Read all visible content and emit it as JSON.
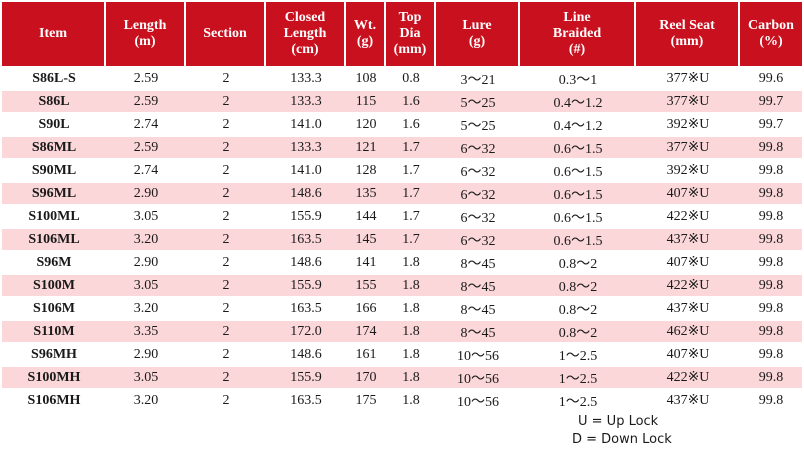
{
  "headers": [
    [
      "Item"
    ],
    [
      "Length",
      "(m)"
    ],
    [
      "Section"
    ],
    [
      "Closed",
      "Length",
      "(cm)"
    ],
    [
      "Wt.",
      "(g)"
    ],
    [
      "Top",
      "Dia",
      "(mm)"
    ],
    [
      "Lure",
      "(g)"
    ],
    [
      "Line",
      "Braided",
      "(#)"
    ],
    [
      "Reel Seat",
      "(mm)"
    ],
    [
      "Carbon",
      "(%)"
    ]
  ],
  "rows": [
    [
      "S86L-S",
      "2.59",
      "2",
      "133.3",
      "108",
      "0.8",
      "3～21",
      "0.3～1",
      "377※U",
      "99.6"
    ],
    [
      "S86L",
      "2.59",
      "2",
      "133.3",
      "115",
      "1.6",
      "5～25",
      "0.4～1.2",
      "377※U",
      "99.7"
    ],
    [
      "S90L",
      "2.74",
      "2",
      "141.0",
      "120",
      "1.6",
      "5～25",
      "0.4～1.2",
      "392※U",
      "99.7"
    ],
    [
      "S86ML",
      "2.59",
      "2",
      "133.3",
      "121",
      "1.7",
      "6～32",
      "0.6～1.5",
      "377※U",
      "99.8"
    ],
    [
      "S90ML",
      "2.74",
      "2",
      "141.0",
      "128",
      "1.7",
      "6～32",
      "0.6～1.5",
      "392※U",
      "99.8"
    ],
    [
      "S96ML",
      "2.90",
      "2",
      "148.6",
      "135",
      "1.7",
      "6～32",
      "0.6～1.5",
      "407※U",
      "99.8"
    ],
    [
      "S100ML",
      "3.05",
      "2",
      "155.9",
      "144",
      "1.7",
      "6～32",
      "0.6～1.5",
      "422※U",
      "99.8"
    ],
    [
      "S106ML",
      "3.20",
      "2",
      "163.5",
      "145",
      "1.7",
      "6～32",
      "0.6～1.5",
      "437※U",
      "99.8"
    ],
    [
      "S96M",
      "2.90",
      "2",
      "148.6",
      "141",
      "1.8",
      "8～45",
      "0.8～2",
      "407※U",
      "99.8"
    ],
    [
      "S100M",
      "3.05",
      "2",
      "155.9",
      "155",
      "1.8",
      "8～45",
      "0.8～2",
      "422※U",
      "99.8"
    ],
    [
      "S106M",
      "3.20",
      "2",
      "163.5",
      "166",
      "1.8",
      "8～45",
      "0.8～2",
      "437※U",
      "99.8"
    ],
    [
      "S110M",
      "3.35",
      "2",
      "172.0",
      "174",
      "1.8",
      "8～45",
      "0.8～2",
      "462※U",
      "99.8"
    ],
    [
      "S96MH",
      "2.90",
      "2",
      "148.6",
      "161",
      "1.8",
      "10～56",
      "1～2.5",
      "407※U",
      "99.8"
    ],
    [
      "S100MH",
      "3.05",
      "2",
      "155.9",
      "170",
      "1.8",
      "10～56",
      "1～2.5",
      "422※U",
      "99.8"
    ],
    [
      "S106MH",
      "3.20",
      "2",
      "163.5",
      "175",
      "1.8",
      "10～56",
      "1～2.5",
      "437※U",
      "99.8"
    ]
  ],
  "legend": {
    "up": "U = Up Lock",
    "down": "D = Down Lock"
  },
  "colors": {
    "header_bg": "#c8101e",
    "alt_row_bg": "#fbd7d9"
  }
}
